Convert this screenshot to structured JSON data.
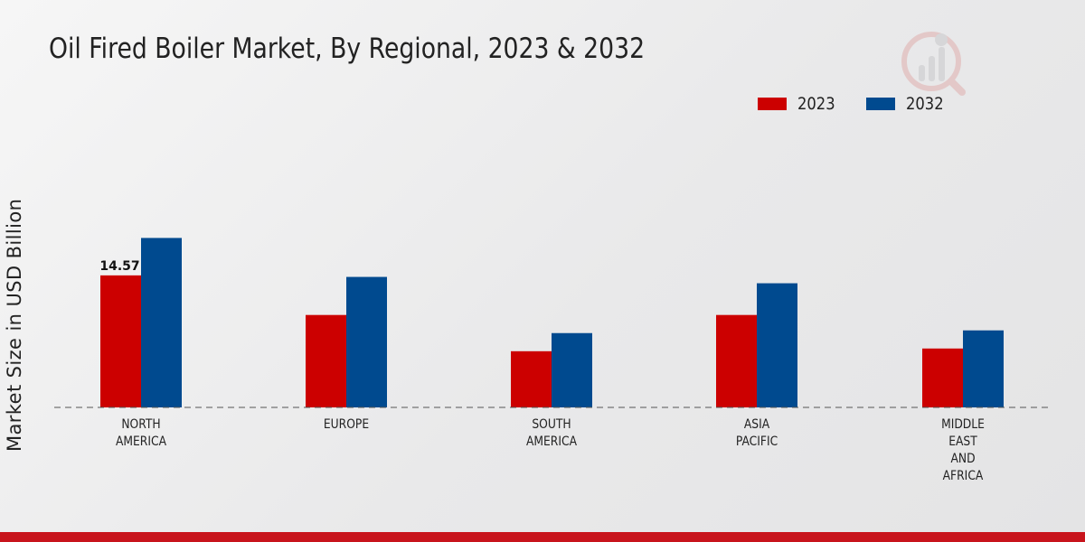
{
  "chart_data": {
    "type": "bar",
    "title": "Oil Fired Boiler Market, By Regional, 2023 & 2032",
    "xlabel": "",
    "ylabel": "Market Size in USD Billion",
    "categories": [
      [
        "NORTH",
        "AMERICA"
      ],
      [
        "EUROPE"
      ],
      [
        "SOUTH",
        "AMERICA"
      ],
      [
        "ASIA",
        "PACIFIC"
      ],
      [
        "MIDDLE",
        "EAST",
        "AND",
        "AFRICA"
      ]
    ],
    "series": [
      {
        "name": "2023",
        "color": "#cc0000",
        "values": [
          14.57,
          10.2,
          6.2,
          10.2,
          6.5
        ]
      },
      {
        "name": "2032",
        "color": "#004a8f",
        "values": [
          18.7,
          14.4,
          8.2,
          13.7,
          8.5
        ]
      }
    ],
    "data_labels": [
      {
        "series": 0,
        "index": 0,
        "text": "14.57"
      }
    ],
    "ylim": [
      0,
      32
    ],
    "grid": false,
    "legend": "top-right"
  }
}
